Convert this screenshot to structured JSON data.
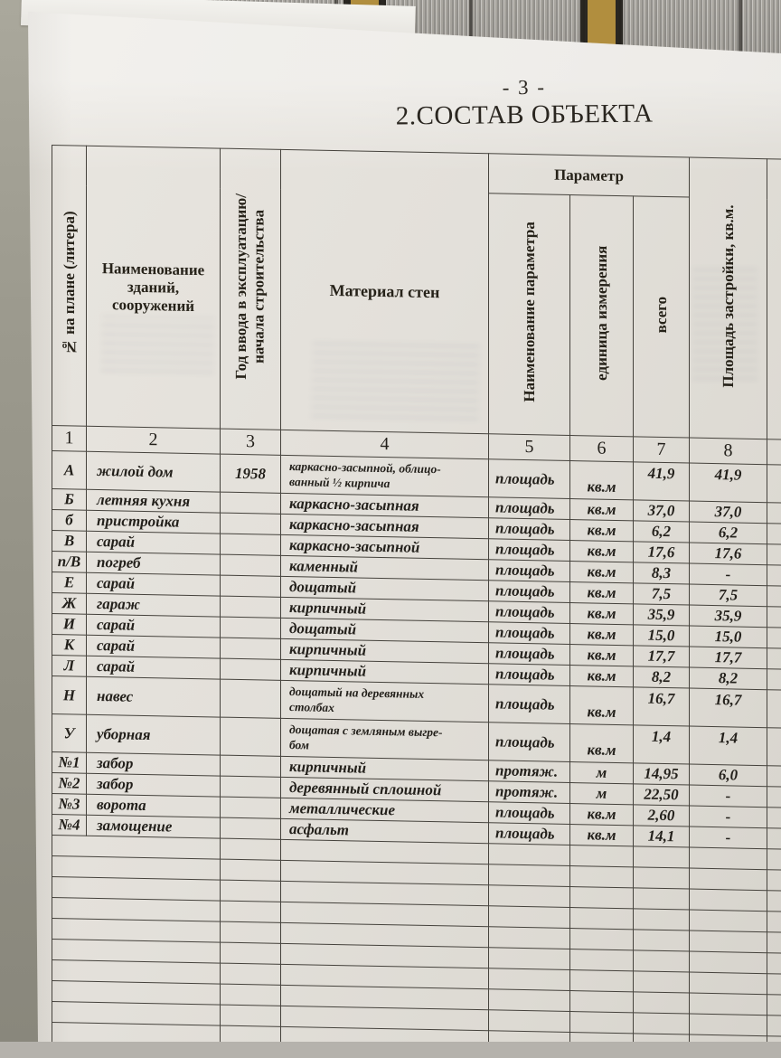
{
  "photo": {
    "colors": {
      "paper": "#e3e0da",
      "ink": "#23201b",
      "table_line": "#45423c",
      "fabric_base": "#b5b2ac",
      "fabric_stripe_black": "#1e1b16",
      "fabric_stripe_yellow": "#b18e3e",
      "left_surface": "#9c9a8e"
    }
  },
  "page": {
    "page_number": "- 3 -",
    "title": "2.СОСТАВ ОБЪЕКТА"
  },
  "table": {
    "param_group_label": "Параметр",
    "headers": {
      "litera": "№ на плане (литера)",
      "name": "Наименование\nзданий,\nсооружений",
      "year": "Год ввода в эксплуатацию/\nначала строительства",
      "material": "Материал стен",
      "parameter": "Наименование параметра",
      "unit": "единица измерения",
      "total": "всего",
      "area": "Площадь застройки, кв.м."
    },
    "column_numbers": [
      "1",
      "2",
      "3",
      "4",
      "5",
      "6",
      "7",
      "8"
    ],
    "rows": [
      {
        "litera": "А",
        "name": "жилой дом",
        "year": "1958",
        "material": "каркасно-засыпной, облицо-\nванный ½ кирпича",
        "parameter": "площадь",
        "unit": "кв.м",
        "total": "41,9",
        "area": "41,9"
      },
      {
        "litera": "Б",
        "name": "летняя кухня",
        "year": "",
        "material": "каркасно-засыпная",
        "parameter": "площадь",
        "unit": "кв.м",
        "total": "37,0",
        "area": "37,0"
      },
      {
        "litera": "б",
        "name": "пристройка",
        "year": "",
        "material": "каркасно-засыпная",
        "parameter": "площадь",
        "unit": "кв.м",
        "total": "6,2",
        "area": "6,2"
      },
      {
        "litera": "В",
        "name": "сарай",
        "year": "",
        "material": "каркасно-засыпной",
        "parameter": "площадь",
        "unit": "кв.м",
        "total": "17,6",
        "area": "17,6"
      },
      {
        "litera": "п/В",
        "name": "погреб",
        "year": "",
        "material": "каменный",
        "parameter": "площадь",
        "unit": "кв.м",
        "total": "8,3",
        "area": "-"
      },
      {
        "litera": "Е",
        "name": "сарай",
        "year": "",
        "material": "дощатый",
        "parameter": "площадь",
        "unit": "кв.м",
        "total": "7,5",
        "area": "7,5"
      },
      {
        "litera": "Ж",
        "name": "гараж",
        "year": "",
        "material": "кирпичный",
        "parameter": "площадь",
        "unit": "кв.м",
        "total": "35,9",
        "area": "35,9"
      },
      {
        "litera": "И",
        "name": "сарай",
        "year": "",
        "material": "дощатый",
        "parameter": "площадь",
        "unit": "кв.м",
        "total": "15,0",
        "area": "15,0"
      },
      {
        "litera": "К",
        "name": "сарай",
        "year": "",
        "material": "кирпичный",
        "parameter": "площадь",
        "unit": "кв.м",
        "total": "17,7",
        "area": "17,7"
      },
      {
        "litera": "Л",
        "name": "сарай",
        "year": "",
        "material": "кирпичный",
        "parameter": "площадь",
        "unit": "кв.м",
        "total": "8,2",
        "area": "8,2"
      },
      {
        "litera": "Н",
        "name": "навес",
        "year": "",
        "material": "дощатый на деревянных\nстолбах",
        "parameter": "площадь",
        "unit": "кв.м",
        "total": "16,7",
        "area": "16,7"
      },
      {
        "litera": "У",
        "name": "уборная",
        "year": "",
        "material": "дощатая с земляным выгре-\nбом",
        "parameter": "площадь",
        "unit": "кв.м",
        "total": "1,4",
        "area": "1,4"
      },
      {
        "litera": "№1",
        "name": "забор",
        "year": "",
        "material": "кирпичный",
        "parameter": "протяж.",
        "unit": "м",
        "total": "14,95",
        "area": "6,0"
      },
      {
        "litera": "№2",
        "name": "забор",
        "year": "",
        "material": "деревянный сплошной",
        "parameter": "протяж.",
        "unit": "м",
        "total": "22,50",
        "area": "-"
      },
      {
        "litera": "№3",
        "name": "ворота",
        "year": "",
        "material": "металлические",
        "parameter": "площадь",
        "unit": "кв.м",
        "total": "2,60",
        "area": "-"
      },
      {
        "litera": "№4",
        "name": "замощение",
        "year": "",
        "material": "асфальт",
        "parameter": "площадь",
        "unit": "кв.м",
        "total": "14,1",
        "area": "-"
      }
    ],
    "empty_row_count": 10
  }
}
